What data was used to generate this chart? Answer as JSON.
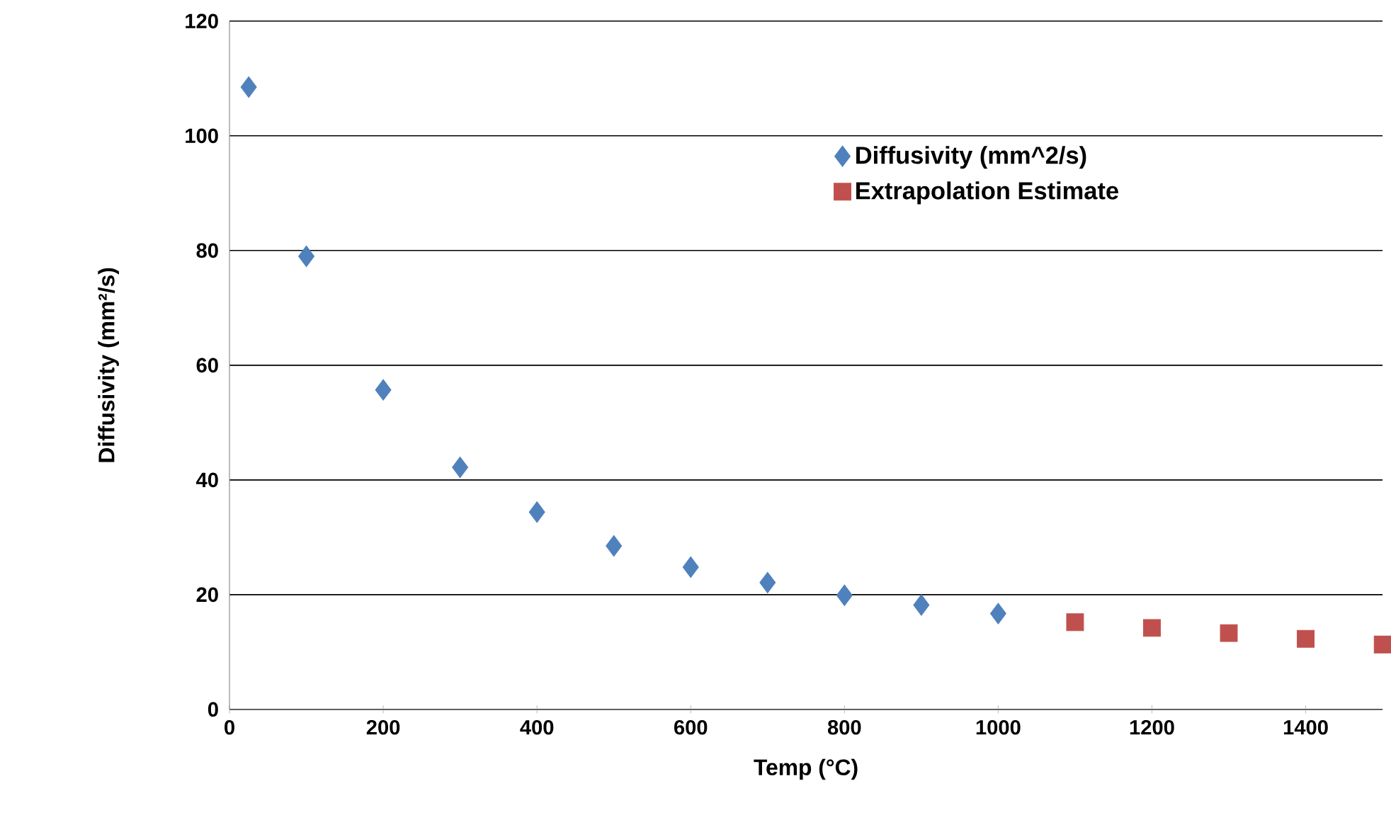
{
  "chart_data": {
    "type": "scatter",
    "xlabel": "Temp (°C)",
    "ylabel": "Diffusivity (mm²/s)",
    "xlim": [
      0,
      1500
    ],
    "xticks": [
      0,
      200,
      400,
      600,
      800,
      1000,
      1200,
      1400
    ],
    "ylim": [
      0,
      120
    ],
    "yticks": [
      0,
      20,
      40,
      60,
      80,
      100,
      120
    ],
    "grid": "y",
    "legend": "top right",
    "series": [
      {
        "name": "Diffusivity (mm^2/s)",
        "color": "#4f81bd",
        "marker": "diamond",
        "x": [
          25,
          100,
          200,
          300,
          400,
          500,
          600,
          700,
          800,
          900,
          1000
        ],
        "values": [
          108.5,
          79,
          55.7,
          42.2,
          34.4,
          28.5,
          24.8,
          22.1,
          19.9,
          18.2,
          16.7
        ]
      },
      {
        "name": "Extrapolation Estimate",
        "color": "#c0504d",
        "marker": "square",
        "x": [
          1100,
          1200,
          1300,
          1400,
          1500
        ],
        "values": [
          15.2,
          14.2,
          13.3,
          12.3,
          11.3
        ]
      }
    ]
  }
}
